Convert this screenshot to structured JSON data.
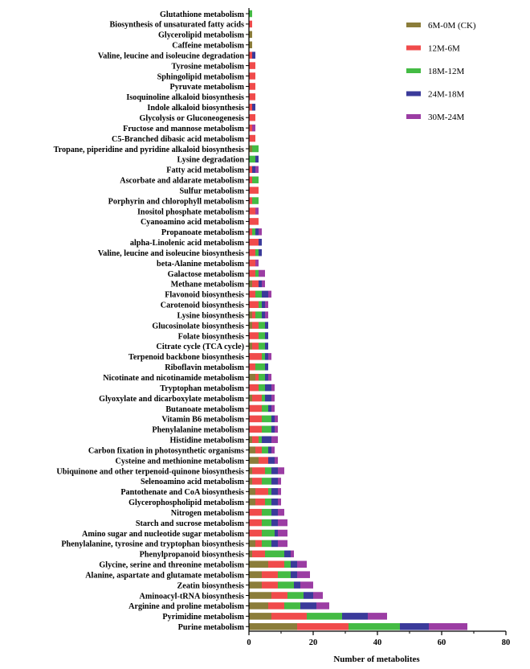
{
  "chart_data": {
    "type": "bar",
    "orientation": "horizontal",
    "stacked": true,
    "xlabel": "Number of metabolites",
    "ylabel": "",
    "xlim": [
      0,
      80
    ],
    "xticks": [
      0,
      20,
      40,
      60,
      80
    ],
    "grid": false,
    "legend_position": "top-right",
    "categories": [
      "Glutathione metabolism",
      "Biosynthesis of unsaturated fatty acids",
      "Glycerolipid metabolism",
      "Caffeine metabolism",
      "Valine, leucine and isoleucine degradation",
      "Tyrosine metabolism",
      "Sphingolipid metabolism",
      "Pyruvate metabolism",
      "Isoquinoline alkaloid biosynthesis",
      "Indole alkaloid biosynthesis",
      "Glycolysis or Gluconeogenesis",
      "Fructose and mannose metabolism",
      "C5-Branched dibasic acid metabolism",
      "Tropane, piperidine and pyridine alkaloid biosynthesis",
      "Lysine degradation",
      "Fatty acid metabolism",
      "Ascorbate and aldarate metabolism",
      "Sulfur metabolism",
      "Porphyrin and chlorophyll metabolism",
      "Inositol phosphate metabolism",
      "Cyanoamino acid metabolism",
      "Propanoate metabolism",
      "alpha-Linolenic acid metabolism",
      "Valine, leucine and isoleucine biosynthesis",
      "beta-Alanine metabolism",
      "Galactose metabolism",
      "Methane metabolism",
      "Flavonoid biosynthesis",
      "Carotenoid biosynthesis",
      "Lysine biosynthesis",
      "Glucosinolate biosynthesis",
      "Folate biosynthesis",
      "Citrate cycle (TCA cycle)",
      "Terpenoid backbone biosynthesis",
      "Riboflavin metabolism",
      "Nicotinate and nicotinamide metabolism",
      "Tryptophan metabolism",
      "Glyoxylate and dicarboxylate metabolism",
      "Butanoate metabolism",
      "Vitamin B6 metabolism",
      "Phenylalanine metabolism",
      "Histidine metabolism",
      "Carbon fixation in photosynthetic organisms",
      "Cysteine and methionine metabolism",
      "Ubiquinone and other terpenoid-quinone biosynthesis",
      "Selenoamino acid metabolism",
      "Pantothenate and CoA biosynthesis",
      "Glycerophospholipid metabolism",
      "Nitrogen metabolism",
      "Starch and sucrose metabolism",
      "Amino sugar and nucleotide sugar metabolism",
      "Phenylalanine, tyrosine and tryptophan biosynthesis",
      "Phenylpropanoid biosynthesis",
      "Glycine, serine and threonine metabolism",
      "Alanine, aspartate and glutamate metabolism",
      "Zeatin biosynthesis",
      "Aminoacyl-tRNA biosynthesis",
      "Arginine and proline metabolism",
      "Pyrimidine metabolism",
      "Purine metabolism"
    ],
    "series": [
      {
        "name": "6M-0M (CK)",
        "color": "#8B7D3A",
        "values": [
          0,
          0,
          1,
          1,
          0,
          0,
          0,
          0,
          0,
          0,
          0,
          0,
          0,
          1,
          0,
          0,
          0,
          0,
          0,
          0,
          0,
          0,
          0,
          0,
          0,
          0,
          1,
          0,
          0,
          1,
          1,
          0,
          1,
          0,
          0,
          2,
          0,
          1,
          0,
          0,
          0,
          1,
          2,
          3,
          1,
          1,
          2,
          2,
          0,
          0,
          0,
          2,
          1,
          6,
          4,
          4,
          7,
          6,
          7,
          15
        ]
      },
      {
        "name": "12M-6M",
        "color": "#F04B4B",
        "values": [
          0,
          1,
          0,
          0,
          1,
          2,
          2,
          2,
          2,
          1,
          2,
          1,
          2,
          0,
          0,
          1,
          1,
          3,
          1,
          2,
          3,
          1,
          3,
          2,
          2,
          2,
          2,
          2,
          3,
          1,
          2,
          3,
          2,
          4,
          2,
          1,
          3,
          3,
          4,
          4,
          4,
          2,
          2,
          3,
          4,
          3,
          4,
          3,
          4,
          4,
          4,
          2,
          4,
          5,
          5,
          5,
          5,
          5,
          11,
          16
        ]
      },
      {
        "name": "18M-12M",
        "color": "#44BB44",
        "values": [
          1,
          0,
          0,
          0,
          0,
          0,
          0,
          0,
          0,
          0,
          0,
          0,
          0,
          2,
          2,
          0,
          2,
          0,
          2,
          0,
          0,
          1,
          0,
          1,
          0,
          1,
          0,
          2,
          1,
          2,
          2,
          2,
          2,
          1,
          3,
          2,
          2,
          1,
          2,
          3,
          3,
          1,
          2,
          0,
          2,
          3,
          1,
          2,
          3,
          3,
          4,
          3,
          6,
          2,
          4,
          5,
          5,
          5,
          11,
          16
        ]
      },
      {
        "name": "24M-18M",
        "color": "#3A3A9A",
        "values": [
          0,
          0,
          0,
          0,
          1,
          0,
          0,
          0,
          0,
          1,
          0,
          0,
          0,
          0,
          1,
          1,
          0,
          0,
          0,
          0,
          0,
          1,
          1,
          1,
          0,
          0,
          1,
          2,
          1,
          1,
          1,
          1,
          1,
          1,
          1,
          1,
          2,
          2,
          1,
          1,
          1,
          3,
          1,
          2,
          2,
          2,
          2,
          2,
          2,
          2,
          1,
          2,
          2,
          2,
          2,
          2,
          3,
          5,
          8,
          9
        ]
      },
      {
        "name": "30M-24M",
        "color": "#9B3DA3",
        "values": [
          0,
          0,
          0,
          0,
          0,
          0,
          0,
          0,
          0,
          0,
          0,
          1,
          0,
          0,
          0,
          1,
          0,
          0,
          0,
          1,
          0,
          1,
          0,
          0,
          1,
          2,
          1,
          1,
          1,
          1,
          0,
          0,
          0,
          1,
          0,
          1,
          1,
          1,
          1,
          1,
          1,
          2,
          1,
          1,
          2,
          1,
          1,
          1,
          2,
          3,
          3,
          3,
          1,
          3,
          4,
          4,
          3,
          4,
          6,
          12
        ]
      }
    ]
  }
}
